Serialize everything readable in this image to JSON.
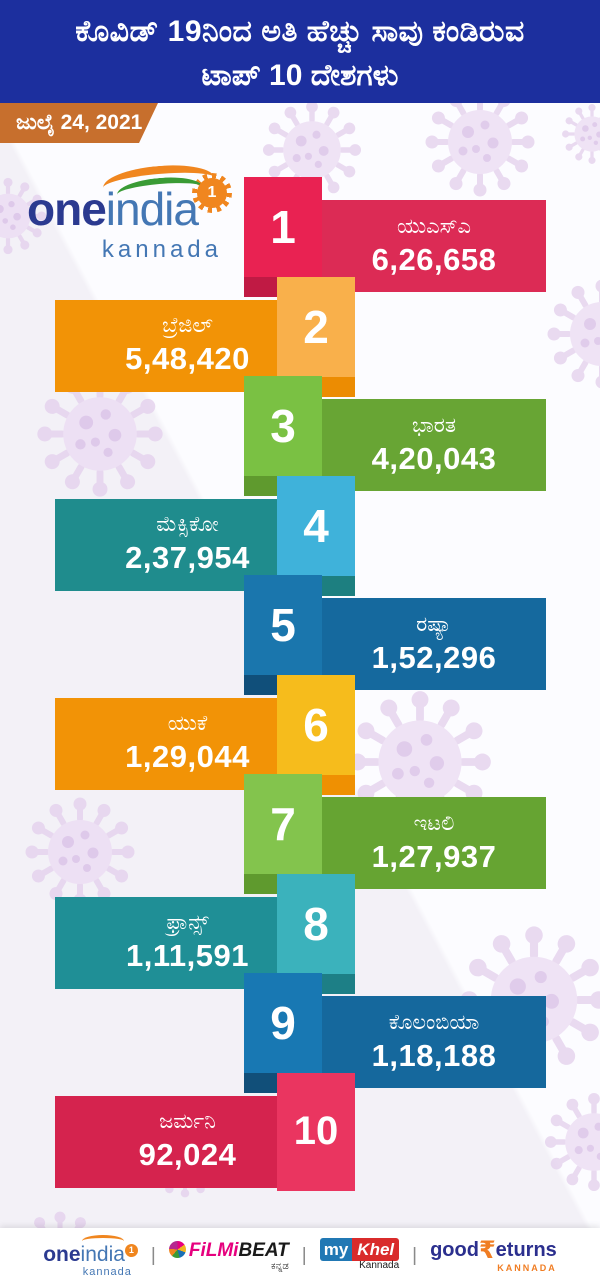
{
  "header": {
    "title_line1": "ಕೊವಿಡ್ 19ನಿಂದ ಅತಿ ಹೆಚ್ಚು ಸಾವು ಕಂಡಿರುವ",
    "title_line2": "ಟಾಪ್ 10 ದೇಶಗಳು",
    "date": "ಜುಲೈ 24, 2021"
  },
  "logo": {
    "part1": "one",
    "part2": "india",
    "sub": "kannada",
    "badge": "1"
  },
  "entries": [
    {
      "rank": "1",
      "country": "ಯುಎಸ್ಎ",
      "deaths": "6,26,658",
      "side": "right",
      "bar_color": "#dc2b55",
      "tile_color": "#e92252",
      "tile_shadow_color": "#c01a44"
    },
    {
      "rank": "2",
      "country": "ಬ್ರೆಜಿಲ್",
      "deaths": "5,48,420",
      "side": "left",
      "bar_color": "#f29306",
      "tile_color": "#f9b04b",
      "tile_shadow_color": "#ec8c02"
    },
    {
      "rank": "3",
      "country": "ಭಾರತ",
      "deaths": "4,20,043",
      "side": "right",
      "bar_color": "#68a534",
      "tile_color": "#7ac143",
      "tile_shadow_color": "#5f9a2e"
    },
    {
      "rank": "4",
      "country": "ಮೆಕ್ಸಿಕೋ",
      "deaths": "2,37,954",
      "side": "left",
      "bar_color": "#1f8c8d",
      "tile_color": "#3fb2da",
      "tile_shadow_color": "#1d7f80"
    },
    {
      "rank": "5",
      "country": "ರಷ್ಯಾ",
      "deaths": "1,52,296",
      "side": "right",
      "bar_color": "#15699e",
      "tile_color": "#1a76ad",
      "tile_shadow_color": "#104f7a"
    },
    {
      "rank": "6",
      "country": "ಯುಕೆ",
      "deaths": "1,29,044",
      "side": "left",
      "bar_color": "#f29306",
      "tile_color": "#f6bc1c",
      "tile_shadow_color": "#ef9002"
    },
    {
      "rank": "7",
      "country": "ಇಟಲಿ",
      "deaths": "1,27,937",
      "side": "right",
      "bar_color": "#66a432",
      "tile_color": "#83c44d",
      "tile_shadow_color": "#5f9a2e"
    },
    {
      "rank": "8",
      "country": "ಫ್ರಾನ್ಸ್",
      "deaths": "1,11,591",
      "side": "left",
      "bar_color": "#1f8f96",
      "tile_color": "#3bb2bc",
      "tile_shadow_color": "#1d7f86"
    },
    {
      "rank": "9",
      "country": "ಕೊಲಂಬಿಯಾ",
      "deaths": "1,18,188",
      "side": "right",
      "bar_color": "#15689d",
      "tile_color": "#1878b3",
      "tile_shadow_color": "#114f79"
    },
    {
      "rank": "10",
      "country": "ಜರ್ಮನಿ",
      "deaths": "92,024",
      "side": "left",
      "bar_color": "#d5234e",
      "tile_color": "#ea3560",
      "tile_shadow_color": "#c01a44"
    }
  ],
  "chart_data": {
    "type": "bar",
    "title": "ಕೊವಿಡ್ 19ನಿಂದ ಅತಿ ಹೆಚ್ಚು ಸಾವು ಕಂಡಿರುವ ಟಾಪ್ 10 ದೇಶಗಳು",
    "subtitle": "ಜುಲೈ 24, 2021",
    "categories": [
      "ಯುಎಸ್ಎ",
      "ಬ್ರೆಜಿಲ್",
      "ಭಾರತ",
      "ಮೆಕ್ಸಿಕೋ",
      "ರಷ್ಯಾ",
      "ಯುಕೆ",
      "ಇಟಲಿ",
      "ಫ್ರಾನ್ಸ್",
      "ಕೊಲಂಬಿಯಾ",
      "ಜರ್ಮನಿ"
    ],
    "values": [
      626658,
      548420,
      420043,
      237954,
      152296,
      129044,
      127937,
      111591,
      118188,
      92024
    ],
    "xlabel": "",
    "ylabel": "",
    "legend": "none",
    "layout": "vertical ranked list, bars alternating right/left with numbered rank tiles"
  },
  "footer": {
    "divider": "|",
    "oneindia": {
      "part1": "one",
      "part2": "india",
      "badge": "1",
      "sub": "kannada"
    },
    "filmibeat": {
      "part1": "FiLMi",
      "part2": "BEAT",
      "sub": "ಕನ್ನಡ"
    },
    "mykhel": {
      "part1": "my",
      "part2": "Khel",
      "sub": "Kannada"
    },
    "goodreturns": {
      "part1": "good",
      "rupee": "₹",
      "part2": "eturns",
      "sub": "KANNADA"
    }
  },
  "colors": {
    "header_bg": "#1c2f9e",
    "header_text": "#ffffff",
    "date_badge_bg": "#c76f2d",
    "logo_dark_blue": "#2b3a90",
    "logo_light_blue": "#4477b4",
    "logo_orange": "#f0861f",
    "logo_green": "#3a9b35",
    "footer_bg": "#ffffff",
    "filmibeat_pink": "#e6007e",
    "filmibeat_black": "#1a1a1a",
    "mykhel_blue": "#2178b4",
    "mykhel_red": "#d92b2b",
    "goodreturns_blue": "#2b2f8e",
    "goodreturns_orange": "#f07d23",
    "virus_body": "#ecdcf3",
    "virus_spike": "#e4d1ed",
    "virus_dot": "#d9c0e7"
  }
}
